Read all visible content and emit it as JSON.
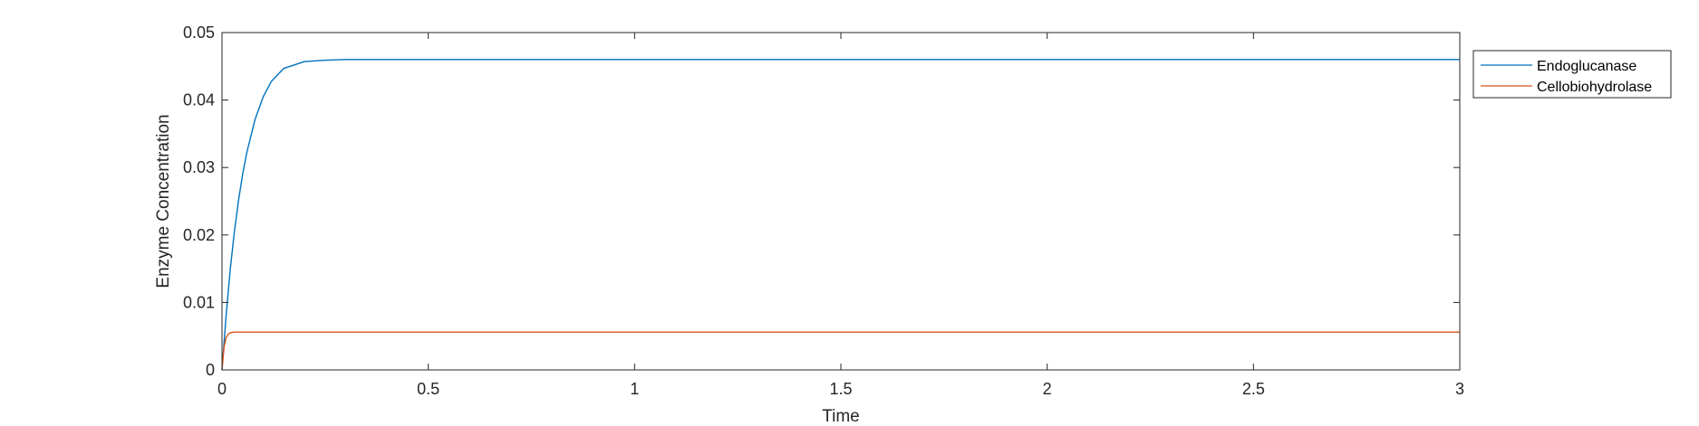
{
  "chart_data": {
    "type": "line",
    "title": "",
    "xlabel": "Time",
    "ylabel": "Enzyme Concentration",
    "xlim": [
      0,
      3
    ],
    "ylim": [
      0,
      0.05
    ],
    "x_ticks": [
      "0",
      "0.5",
      "1",
      "1.5",
      "2",
      "2.5",
      "3"
    ],
    "x_tick_values": [
      0,
      0.5,
      1,
      1.5,
      2,
      2.5,
      3
    ],
    "y_ticks": [
      "0",
      "0.01",
      "0.02",
      "0.03",
      "0.04",
      "0.05"
    ],
    "y_tick_values": [
      0,
      0.01,
      0.02,
      0.03,
      0.04,
      0.05
    ],
    "grid": false,
    "legend_position": "outside top-right",
    "series": [
      {
        "name": "Endoglucanase",
        "color": "#0072BD",
        "x": [
          0,
          0.01,
          0.02,
          0.03,
          0.04,
          0.05,
          0.06,
          0.08,
          0.1,
          0.12,
          0.15,
          0.2,
          0.25,
          0.3,
          0.4,
          0.5,
          1,
          1.5,
          2,
          2.5,
          3
        ],
        "y": [
          0,
          0.0081,
          0.0149,
          0.0205,
          0.0251,
          0.029,
          0.0322,
          0.0371,
          0.0405,
          0.0428,
          0.0447,
          0.0457,
          0.0459,
          0.046,
          0.046,
          0.046,
          0.046,
          0.046,
          0.046,
          0.046,
          0.046
        ]
      },
      {
        "name": "Cellobiohydrolase",
        "color": "#D95319",
        "x": [
          0,
          0.005,
          0.01,
          0.015,
          0.02,
          0.03,
          0.04,
          0.06,
          0.1,
          0.5,
          1,
          1.5,
          2,
          2.5,
          3
        ],
        "y": [
          0,
          0.0034,
          0.0048,
          0.0053,
          0.0055,
          0.0056,
          0.0056,
          0.0056,
          0.0056,
          0.0056,
          0.0056,
          0.0056,
          0.0056,
          0.0056,
          0.0056
        ]
      }
    ]
  }
}
